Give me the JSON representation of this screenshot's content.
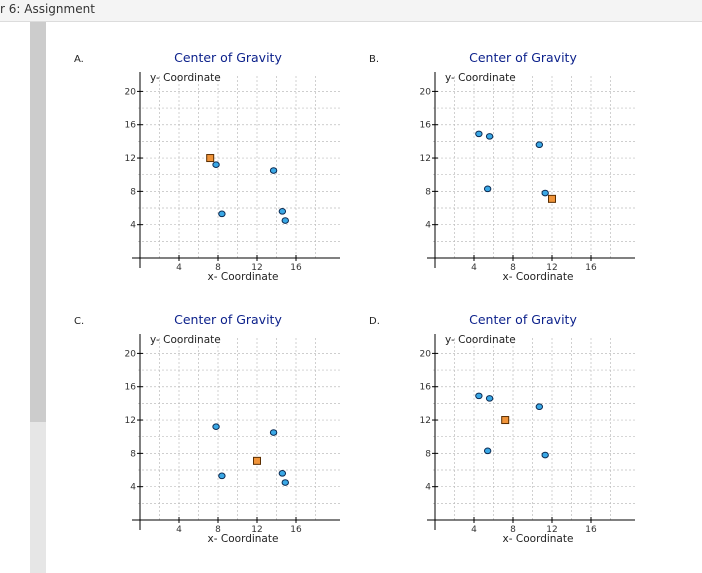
{
  "header": {
    "title": "r 6: Assignment"
  },
  "colors": {
    "accent": "#0a1f8a",
    "point_fill": "#3aa8e6",
    "center_fill": "#f0943a",
    "grid": "#bdbdbd",
    "axis": "#000000"
  },
  "chart_data": [
    {
      "option": "A.",
      "type": "scatter",
      "title": "Center of Gravity",
      "xlabel": "x- Coordinate",
      "ylabel": "y- Coordinate",
      "xlim": [
        0,
        20
      ],
      "ylim": [
        0,
        22
      ],
      "xticks": [
        4,
        8,
        12,
        16
      ],
      "yticks": [
        4,
        8,
        12,
        16,
        20
      ],
      "grid": true,
      "points": [
        {
          "x": 7.8,
          "y": 11.2
        },
        {
          "x": 8.4,
          "y": 5.3
        },
        {
          "x": 13.7,
          "y": 10.5
        },
        {
          "x": 14.6,
          "y": 5.6
        },
        {
          "x": 14.9,
          "y": 4.5
        }
      ],
      "center": {
        "x": 7.2,
        "y": 12.0
      }
    },
    {
      "option": "B.",
      "type": "scatter",
      "title": "Center of Gravity",
      "xlabel": "x- Coordinate",
      "ylabel": "y- Coordinate",
      "xlim": [
        0,
        20
      ],
      "ylim": [
        0,
        22
      ],
      "xticks": [
        4,
        8,
        12,
        16
      ],
      "yticks": [
        4,
        8,
        12,
        16,
        20
      ],
      "grid": true,
      "points": [
        {
          "x": 4.5,
          "y": 14.9
        },
        {
          "x": 5.6,
          "y": 14.6
        },
        {
          "x": 10.7,
          "y": 13.6
        },
        {
          "x": 5.4,
          "y": 8.3
        },
        {
          "x": 11.3,
          "y": 7.8
        }
      ],
      "center": {
        "x": 12.0,
        "y": 7.1
      }
    },
    {
      "option": "C.",
      "type": "scatter",
      "title": "Center of Gravity",
      "xlabel": "x- Coordinate",
      "ylabel": "y- Coordinate",
      "xlim": [
        0,
        20
      ],
      "ylim": [
        0,
        22
      ],
      "xticks": [
        4,
        8,
        12,
        16
      ],
      "yticks": [
        4,
        8,
        12,
        16,
        20
      ],
      "grid": true,
      "points": [
        {
          "x": 7.8,
          "y": 11.2
        },
        {
          "x": 8.4,
          "y": 5.3
        },
        {
          "x": 13.7,
          "y": 10.5
        },
        {
          "x": 14.6,
          "y": 5.6
        },
        {
          "x": 14.9,
          "y": 4.5
        }
      ],
      "center": {
        "x": 12.0,
        "y": 7.1
      }
    },
    {
      "option": "D.",
      "type": "scatter",
      "title": "Center of Gravity",
      "xlabel": "x- Coordinate",
      "ylabel": "y- Coordinate",
      "xlim": [
        0,
        20
      ],
      "ylim": [
        0,
        22
      ],
      "xticks": [
        4,
        8,
        12,
        16
      ],
      "yticks": [
        4,
        8,
        12,
        16,
        20
      ],
      "grid": true,
      "points": [
        {
          "x": 4.5,
          "y": 14.9
        },
        {
          "x": 5.6,
          "y": 14.6
        },
        {
          "x": 10.7,
          "y": 13.6
        },
        {
          "x": 5.4,
          "y": 8.3
        },
        {
          "x": 11.3,
          "y": 7.8
        }
      ],
      "center": {
        "x": 7.2,
        "y": 12.0
      }
    }
  ]
}
